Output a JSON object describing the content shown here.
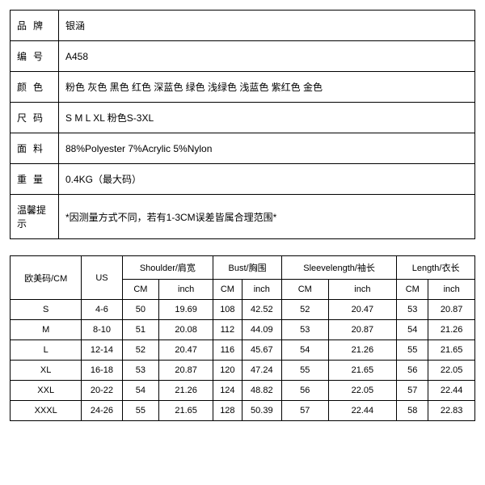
{
  "info": {
    "rows": [
      {
        "label": "品牌",
        "value": "银涵"
      },
      {
        "label": "编号",
        "value": "A458"
      },
      {
        "label": "颜色",
        "value": "粉色  灰色  黑色  红色  深蓝色  绿色  浅绿色  浅蓝色  紫红色  金色"
      },
      {
        "label": "尺码",
        "value": "S M L XL   粉色S-3XL"
      },
      {
        "label": "面料",
        "value": "88%Polyester   7%Acrylic   5%Nylon"
      },
      {
        "label": "重量",
        "value": "0.4KG（最大码）"
      },
      {
        "label": "温馨提示",
        "value": "*因测量方式不同，若有1-3CM误差皆属合理范围*"
      }
    ]
  },
  "sizeTable": {
    "header1": {
      "c0": "欧美码/CM",
      "c1": "US",
      "g1": "Shoulder/肩宽",
      "g2": "Bust/胸围",
      "g3": "Sleevelength/袖长",
      "g4": "Length/衣长"
    },
    "header2": {
      "cm": "CM",
      "inch": "inch"
    },
    "rows": [
      {
        "size": "S",
        "us": "4-6",
        "sh_cm": "50",
        "sh_in": "19.69",
        "bu_cm": "108",
        "bu_in": "42.52",
        "sl_cm": "52",
        "sl_in": "20.47",
        "le_cm": "53",
        "le_in": "20.87"
      },
      {
        "size": "M",
        "us": "8-10",
        "sh_cm": "51",
        "sh_in": "20.08",
        "bu_cm": "112",
        "bu_in": "44.09",
        "sl_cm": "53",
        "sl_in": "20.87",
        "le_cm": "54",
        "le_in": "21.26"
      },
      {
        "size": "L",
        "us": "12-14",
        "sh_cm": "52",
        "sh_in": "20.47",
        "bu_cm": "116",
        "bu_in": "45.67",
        "sl_cm": "54",
        "sl_in": "21.26",
        "le_cm": "55",
        "le_in": "21.65"
      },
      {
        "size": "XL",
        "us": "16-18",
        "sh_cm": "53",
        "sh_in": "20.87",
        "bu_cm": "120",
        "bu_in": "47.24",
        "sl_cm": "55",
        "sl_in": "21.65",
        "le_cm": "56",
        "le_in": "22.05"
      },
      {
        "size": "XXL",
        "us": "20-22",
        "sh_cm": "54",
        "sh_in": "21.26",
        "bu_cm": "124",
        "bu_in": "48.82",
        "sl_cm": "56",
        "sl_in": "22.05",
        "le_cm": "57",
        "le_in": "22.44"
      },
      {
        "size": "XXXL",
        "us": "24-26",
        "sh_cm": "55",
        "sh_in": "21.65",
        "bu_cm": "128",
        "bu_in": "50.39",
        "sl_cm": "57",
        "sl_in": "22.44",
        "le_cm": "58",
        "le_in": "22.83"
      }
    ]
  },
  "styles": {
    "labelCellWidth": "60px",
    "borderColor": "#000000",
    "background": "#ffffff",
    "infoFontSize": "12px",
    "sizeFontSize": "11px"
  }
}
